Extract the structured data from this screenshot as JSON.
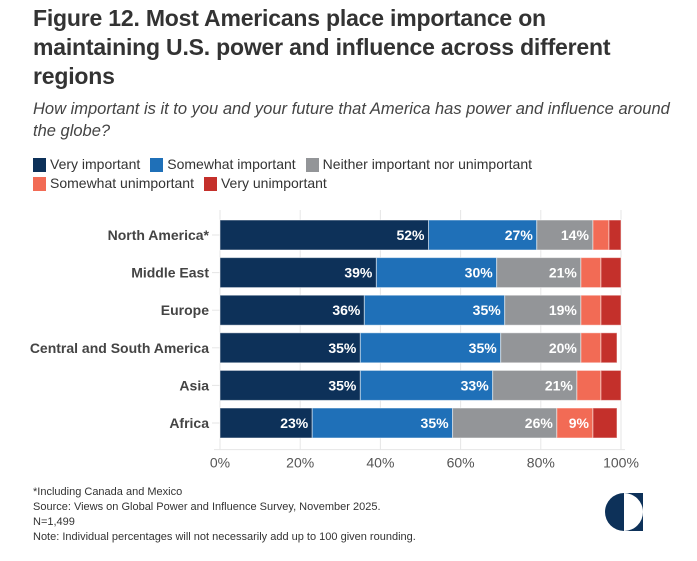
{
  "title": "Figure 12. Most Americans place importance on maintaining U.S. power and influence across different regions",
  "subtitle": "How important is it to you and your future that America has power and influence around the globe?",
  "legend": [
    {
      "label": "Very important",
      "color": "#0d3159"
    },
    {
      "label": "Somewhat important",
      "color": "#1f70b8"
    },
    {
      "label": "Neither important nor unimportant",
      "color": "#939598"
    },
    {
      "label": "Somewhat unimportant",
      "color": "#f26b55"
    },
    {
      "label": "Very unimportant",
      "color": "#c4302b"
    }
  ],
  "chart_data": {
    "type": "bar",
    "orientation": "horizontal",
    "stacked": true,
    "title": "Figure 12. Most Americans place importance on maintaining U.S. power and influence across different regions",
    "subtitle": "How important is it to you and your future that America has power and influence around the globe?",
    "xlabel": "",
    "ylabel": "",
    "xlim": [
      0,
      100
    ],
    "x_ticks": [
      "0%",
      "20%",
      "40%",
      "60%",
      "80%",
      "100%"
    ],
    "x_tick_values": [
      0,
      20,
      40,
      60,
      80,
      100
    ],
    "grid": true,
    "legend_position": "top-left",
    "categories": [
      "North America*",
      "Middle East",
      "Europe",
      "Central and South America",
      "Asia",
      "Africa"
    ],
    "series": [
      {
        "name": "Very important",
        "color": "#0d3159",
        "values": [
          52,
          39,
          36,
          35,
          35,
          23
        ],
        "labels_shown": [
          true,
          true,
          true,
          true,
          true,
          true
        ]
      },
      {
        "name": "Somewhat important",
        "color": "#1f70b8",
        "values": [
          27,
          30,
          35,
          35,
          33,
          35
        ],
        "labels_shown": [
          true,
          true,
          true,
          true,
          true,
          true
        ]
      },
      {
        "name": "Neither important nor unimportant",
        "color": "#939598",
        "values": [
          14,
          21,
          19,
          20,
          21,
          26
        ],
        "labels_shown": [
          true,
          true,
          true,
          true,
          true,
          true
        ]
      },
      {
        "name": "Somewhat unimportant",
        "color": "#f26b55",
        "values": [
          4,
          5,
          5,
          5,
          6,
          9
        ],
        "labels_shown": [
          false,
          false,
          false,
          false,
          false,
          true
        ]
      },
      {
        "name": "Very unimportant",
        "color": "#c4302b",
        "values": [
          3,
          5,
          5,
          4,
          5,
          6
        ],
        "labels_shown": [
          false,
          false,
          false,
          false,
          false,
          false
        ]
      }
    ]
  },
  "notes": [
    "*Including Canada and Mexico",
    "Source: Views on Global Power and Influence Survey, November 2025.",
    "N=1,499",
    "Note: Individual percentages will not necessarily add up to 100 given rounding."
  ],
  "logo": {
    "icon": "half-circle-logo-icon",
    "color": "#0d3159"
  }
}
